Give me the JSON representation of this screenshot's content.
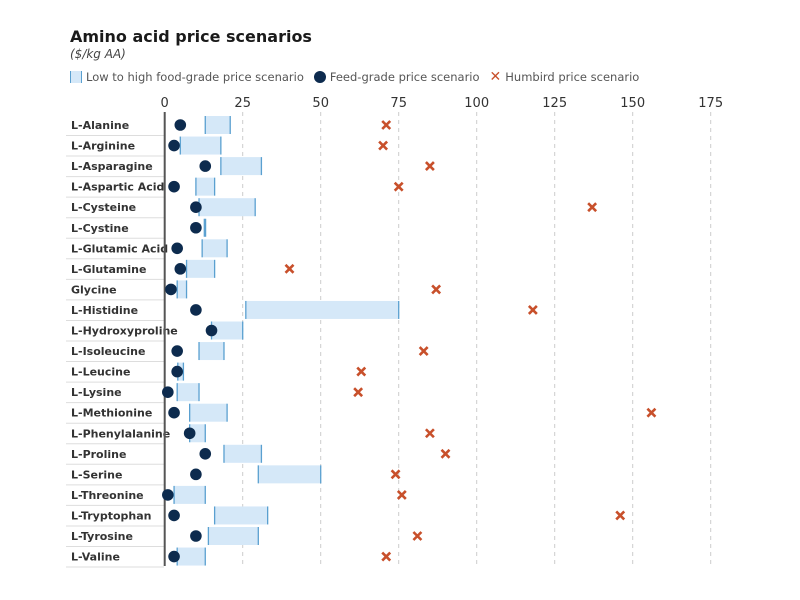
{
  "chart_data": {
    "type": "range-dot",
    "title": "Amino acid price scenarios",
    "subtitle": "($/kg AA)",
    "legend": {
      "position": "top-left",
      "range": "Low to high food-grade price scenario",
      "feed": "Feed-grade price scenario",
      "humbird": "Humbird price scenario"
    },
    "xlim": [
      0,
      175
    ],
    "xticks": [
      0,
      25,
      50,
      75,
      100,
      125,
      150,
      175
    ],
    "grid": true,
    "colors": {
      "range_fill": "#d5e8f8",
      "range_edge": "#5aa0d0",
      "feed": "#0d2b4e",
      "humbird": "#c8502b"
    },
    "categories": [
      "L-Alanine",
      "L-Arginine",
      "L-Asparagine",
      "L-Aspartic Acid",
      "L-Cysteine",
      "L-Cystine",
      "L-Glutamic Acid",
      "L-Glutamine",
      "Glycine",
      "L-Histidine",
      "L-Hydroxyproline",
      "L-Isoleucine",
      "L-Leucine",
      "L-Lysine",
      "L-Methionine",
      "L-Phenylalanine",
      "L-Proline",
      "L-Serine",
      "L-Threonine",
      "L-Tryptophan",
      "L-Tyrosine",
      "L-Valine"
    ],
    "food_low": [
      13,
      5,
      18,
      10,
      11,
      12.7,
      12,
      7,
      4,
      26,
      15,
      11,
      4.2,
      4,
      8,
      8,
      19,
      30,
      3,
      16,
      14,
      4
    ],
    "food_high": [
      21,
      18,
      31,
      16,
      29,
      13.1,
      20,
      16,
      7,
      75,
      25,
      19,
      6,
      11,
      20,
      13,
      31,
      50,
      13,
      33,
      30,
      13
    ],
    "feed": [
      5,
      3,
      13,
      3,
      10,
      10,
      4,
      5,
      2,
      10,
      15,
      4,
      4,
      1,
      3,
      8,
      13,
      10,
      1,
      3,
      10,
      3
    ],
    "humbird": [
      71,
      70,
      85,
      75,
      137,
      null,
      null,
      40,
      87,
      118,
      null,
      83,
      63,
      62,
      156,
      85,
      90,
      74,
      76,
      146,
      81,
      71
    ]
  }
}
